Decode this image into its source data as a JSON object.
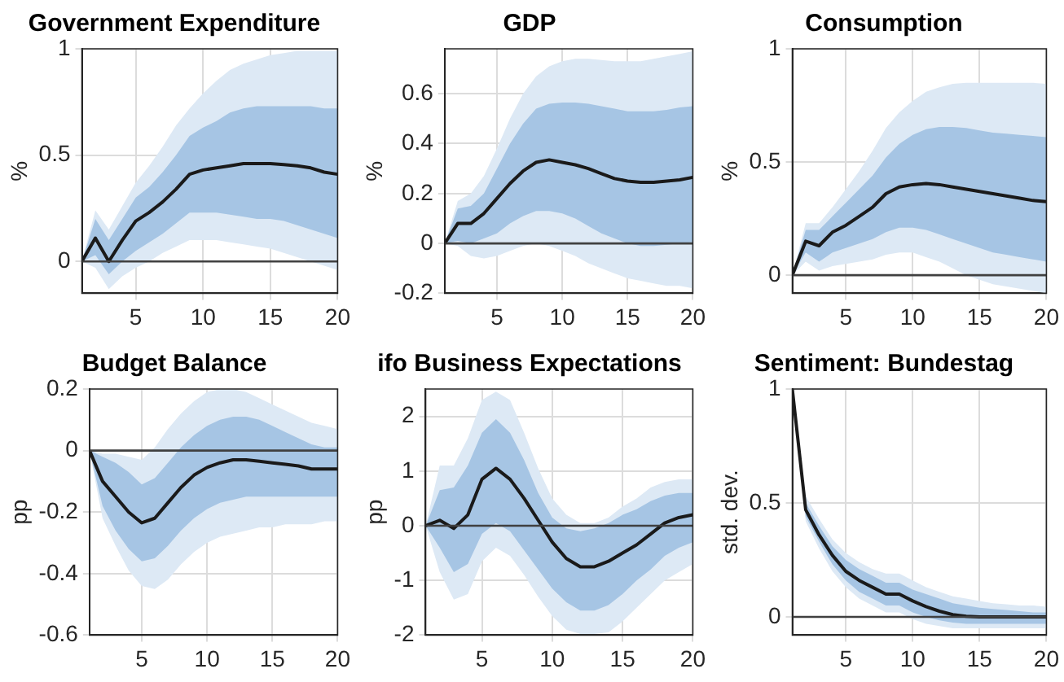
{
  "chart_data": [
    {
      "type": "line",
      "title": "Government Expenditure",
      "ylabel": "%",
      "x": [
        1,
        2,
        3,
        4,
        5,
        6,
        7,
        8,
        9,
        10,
        11,
        12,
        13,
        14,
        15,
        16,
        17,
        18,
        19,
        20
      ],
      "xlim": [
        1,
        20
      ],
      "xticks": [
        5,
        10,
        15,
        20
      ],
      "ylim": [
        -0.15,
        1
      ],
      "yticks": [
        0,
        0.5,
        1
      ],
      "grid": true,
      "ref_lines": [
        {
          "axis": "y",
          "value": 0,
          "color": "#404040"
        }
      ],
      "series": [
        {
          "color": "#1a1a1a",
          "values": [
            0,
            0.11,
            0,
            0.1,
            0.19,
            0.23,
            0.28,
            0.34,
            0.41,
            0.43,
            0.44,
            0.45,
            0.46,
            0.46,
            0.46,
            0.455,
            0.45,
            0.44,
            0.42,
            0.41
          ],
          "lower": [
            0,
            0.03,
            -0.06,
            0,
            0.05,
            0.09,
            0.13,
            0.18,
            0.23,
            0.23,
            0.23,
            0.22,
            0.21,
            0.2,
            0.2,
            0.19,
            0.17,
            0.15,
            0.13,
            0.11
          ],
          "upper": [
            0,
            0.2,
            0.1,
            0.2,
            0.3,
            0.35,
            0.42,
            0.5,
            0.59,
            0.63,
            0.66,
            0.7,
            0.72,
            0.73,
            0.73,
            0.73,
            0.73,
            0.73,
            0.72,
            0.72
          ]
        },
        {
          "color": "#dde9f5",
          "values": [
            null,
            null,
            null,
            null,
            null,
            null,
            null,
            null,
            null,
            null,
            null,
            null,
            null,
            null,
            null,
            null,
            null,
            null,
            null,
            null
          ],
          "lower": [
            0,
            -0.03,
            -0.13,
            -0.07,
            -0.03,
            0,
            0.04,
            0.07,
            0.1,
            0.1,
            0.1,
            0.09,
            0.08,
            0.07,
            0.06,
            0.04,
            0.02,
            0,
            -0.02,
            -0.04
          ],
          "upper": [
            0,
            0.24,
            0.15,
            0.26,
            0.37,
            0.45,
            0.54,
            0.64,
            0.72,
            0.79,
            0.85,
            0.9,
            0.93,
            0.95,
            0.97,
            0.98,
            0.99,
            0.99,
            0.99,
            0.99
          ]
        }
      ]
    },
    {
      "type": "line",
      "title": "GDP",
      "ylabel": "%",
      "x": [
        1,
        2,
        3,
        4,
        5,
        6,
        7,
        8,
        9,
        10,
        11,
        12,
        13,
        14,
        15,
        16,
        17,
        18,
        19,
        20
      ],
      "xlim": [
        1,
        20
      ],
      "xticks": [
        5,
        10,
        15,
        20
      ],
      "ylim": [
        -0.2,
        0.78
      ],
      "yticks": [
        -0.2,
        0,
        0.2,
        0.4,
        0.6
      ],
      "grid": true,
      "ref_lines": [
        {
          "axis": "y",
          "value": 0,
          "color": "#404040"
        }
      ],
      "series": [
        {
          "color": "#1a1a1a",
          "values": [
            0,
            0.08,
            0.08,
            0.12,
            0.18,
            0.24,
            0.29,
            0.325,
            0.335,
            0.325,
            0.315,
            0.3,
            0.28,
            0.26,
            0.25,
            0.245,
            0.245,
            0.25,
            0.255,
            0.265
          ],
          "lower": [
            0,
            0.01,
            0,
            0.02,
            0.04,
            0.08,
            0.11,
            0.13,
            0.13,
            0.12,
            0.1,
            0.07,
            0.04,
            0.02,
            0,
            -0.01,
            -0.01,
            -0.005,
            0,
            0.005
          ],
          "upper": [
            0,
            0.14,
            0.15,
            0.2,
            0.3,
            0.4,
            0.48,
            0.54,
            0.56,
            0.565,
            0.565,
            0.56,
            0.55,
            0.54,
            0.53,
            0.53,
            0.53,
            0.535,
            0.545,
            0.55
          ]
        },
        {
          "color": "#dde9f5",
          "values": [
            null,
            null,
            null,
            null,
            null,
            null,
            null,
            null,
            null,
            null,
            null,
            null,
            null,
            null,
            null,
            null,
            null,
            null,
            null,
            null
          ],
          "lower": [
            0,
            -0.01,
            -0.05,
            -0.06,
            -0.05,
            -0.03,
            -0.01,
            0,
            -0.01,
            -0.03,
            -0.05,
            -0.08,
            -0.1,
            -0.12,
            -0.14,
            -0.15,
            -0.16,
            -0.17,
            -0.17,
            -0.18
          ],
          "upper": [
            0,
            0.17,
            0.2,
            0.27,
            0.38,
            0.5,
            0.6,
            0.67,
            0.71,
            0.73,
            0.74,
            0.74,
            0.735,
            0.73,
            0.73,
            0.73,
            0.74,
            0.75,
            0.76,
            0.77
          ]
        }
      ]
    },
    {
      "type": "line",
      "title": "Consumption",
      "ylabel": "%",
      "x": [
        1,
        2,
        3,
        4,
        5,
        6,
        7,
        8,
        9,
        10,
        11,
        12,
        13,
        14,
        15,
        16,
        17,
        18,
        19,
        20
      ],
      "xlim": [
        1,
        20
      ],
      "xticks": [
        5,
        10,
        15,
        20
      ],
      "ylim": [
        -0.08,
        1
      ],
      "yticks": [
        0,
        0.5,
        1
      ],
      "grid": true,
      "ref_lines": [
        {
          "axis": "y",
          "value": 0,
          "color": "#404040"
        }
      ],
      "series": [
        {
          "color": "#1a1a1a",
          "values": [
            0,
            0.15,
            0.13,
            0.19,
            0.22,
            0.26,
            0.3,
            0.36,
            0.39,
            0.4,
            0.405,
            0.4,
            0.39,
            0.38,
            0.37,
            0.36,
            0.35,
            0.34,
            0.33,
            0.325
          ],
          "lower": [
            0,
            0.1,
            0.06,
            0.1,
            0.12,
            0.14,
            0.16,
            0.19,
            0.21,
            0.21,
            0.2,
            0.18,
            0.16,
            0.14,
            0.12,
            0.1,
            0.09,
            0.08,
            0.07,
            0.06
          ],
          "upper": [
            0,
            0.2,
            0.2,
            0.26,
            0.32,
            0.38,
            0.44,
            0.52,
            0.58,
            0.62,
            0.645,
            0.655,
            0.655,
            0.65,
            0.64,
            0.63,
            0.625,
            0.62,
            0.615,
            0.61
          ]
        },
        {
          "color": "#dde9f5",
          "values": [
            null,
            null,
            null,
            null,
            null,
            null,
            null,
            null,
            null,
            null,
            null,
            null,
            null,
            null,
            null,
            null,
            null,
            null,
            null,
            null
          ],
          "lower": [
            0,
            0.06,
            0.02,
            0.04,
            0.05,
            0.06,
            0.07,
            0.09,
            0.1,
            0.1,
            0.08,
            0.06,
            0.03,
            0,
            -0.02,
            -0.04,
            -0.05,
            -0.06,
            -0.07,
            -0.08
          ],
          "upper": [
            0,
            0.23,
            0.23,
            0.3,
            0.38,
            0.46,
            0.55,
            0.65,
            0.72,
            0.77,
            0.81,
            0.83,
            0.845,
            0.85,
            0.85,
            0.85,
            0.85,
            0.85,
            0.85,
            0.845
          ]
        }
      ]
    },
    {
      "type": "line",
      "title": "Budget Balance",
      "ylabel": "pp",
      "x": [
        1,
        2,
        3,
        4,
        5,
        6,
        7,
        8,
        9,
        10,
        11,
        12,
        13,
        14,
        15,
        16,
        17,
        18,
        19,
        20
      ],
      "xlim": [
        1,
        20
      ],
      "xticks": [
        5,
        10,
        15,
        20
      ],
      "ylim": [
        -0.6,
        0.2
      ],
      "yticks": [
        -0.6,
        -0.4,
        -0.2,
        0,
        0.2
      ],
      "grid": true,
      "ref_lines": [
        {
          "axis": "y",
          "value": 0,
          "color": "#404040"
        }
      ],
      "series": [
        {
          "color": "#1a1a1a",
          "values": [
            0,
            -0.1,
            -0.15,
            -0.2,
            -0.235,
            -0.22,
            -0.17,
            -0.12,
            -0.08,
            -0.055,
            -0.04,
            -0.03,
            -0.03,
            -0.035,
            -0.04,
            -0.045,
            -0.05,
            -0.06,
            -0.06,
            -0.06
          ],
          "lower": [
            0,
            -0.18,
            -0.26,
            -0.32,
            -0.36,
            -0.35,
            -0.31,
            -0.26,
            -0.22,
            -0.19,
            -0.17,
            -0.16,
            -0.15,
            -0.15,
            -0.15,
            -0.15,
            -0.15,
            -0.15,
            -0.15,
            -0.15
          ],
          "upper": [
            0,
            -0.02,
            -0.04,
            -0.07,
            -0.11,
            -0.09,
            -0.04,
            0.01,
            0.05,
            0.08,
            0.1,
            0.11,
            0.11,
            0.1,
            0.08,
            0.06,
            0.04,
            0.02,
            0.01,
            0.01
          ]
        },
        {
          "color": "#dde9f5",
          "values": [
            null,
            null,
            null,
            null,
            null,
            null,
            null,
            null,
            null,
            null,
            null,
            null,
            null,
            null,
            null,
            null,
            null,
            null,
            null,
            null
          ],
          "lower": [
            0,
            -0.22,
            -0.31,
            -0.39,
            -0.44,
            -0.45,
            -0.42,
            -0.37,
            -0.33,
            -0.3,
            -0.28,
            -0.27,
            -0.26,
            -0.25,
            -0.25,
            -0.24,
            -0.24,
            -0.24,
            -0.23,
            -0.23
          ],
          "upper": [
            0,
            -0.01,
            -0.01,
            -0.02,
            -0.03,
            0.01,
            0.07,
            0.12,
            0.16,
            0.19,
            0.2,
            0.2,
            0.19,
            0.17,
            0.15,
            0.13,
            0.11,
            0.09,
            0.08,
            0.07
          ]
        }
      ]
    },
    {
      "type": "line",
      "title": "ifo Business Expectations",
      "ylabel": "pp",
      "x": [
        1,
        2,
        3,
        4,
        5,
        6,
        7,
        8,
        9,
        10,
        11,
        12,
        13,
        14,
        15,
        16,
        17,
        18,
        19,
        20
      ],
      "xlim": [
        1,
        20
      ],
      "xticks": [
        5,
        10,
        15,
        20
      ],
      "ylim": [
        -2,
        2.5
      ],
      "yticks": [
        -2,
        -1,
        0,
        1,
        2
      ],
      "grid": true,
      "ref_lines": [
        {
          "axis": "y",
          "value": 0,
          "color": "#404040"
        }
      ],
      "series": [
        {
          "color": "#1a1a1a",
          "values": [
            0,
            0.1,
            -0.05,
            0.2,
            0.85,
            1.05,
            0.85,
            0.5,
            0.1,
            -0.3,
            -0.6,
            -0.75,
            -0.75,
            -0.65,
            -0.5,
            -0.35,
            -0.15,
            0.05,
            0.15,
            0.2
          ],
          "lower": [
            0,
            -0.4,
            -0.85,
            -0.7,
            -0.15,
            0.05,
            -0.1,
            -0.45,
            -0.8,
            -1.15,
            -1.4,
            -1.55,
            -1.55,
            -1.45,
            -1.25,
            -1,
            -0.8,
            -0.55,
            -0.4,
            -0.3
          ],
          "upper": [
            0,
            0.65,
            0.7,
            1.1,
            1.7,
            1.95,
            1.7,
            1.2,
            0.6,
            0.15,
            -0.05,
            -0.1,
            -0.05,
            0.05,
            0.2,
            0.3,
            0.45,
            0.55,
            0.6,
            0.6
          ]
        },
        {
          "color": "#dde9f5",
          "values": [
            null,
            null,
            null,
            null,
            null,
            null,
            null,
            null,
            null,
            null,
            null,
            null,
            null,
            null,
            null,
            null,
            null,
            null,
            null,
            null
          ],
          "lower": [
            0,
            -0.85,
            -1.35,
            -1.25,
            -0.65,
            -0.4,
            -0.55,
            -0.9,
            -1.3,
            -1.65,
            -1.9,
            -1.98,
            -1.98,
            -1.95,
            -1.75,
            -1.5,
            -1.25,
            -1,
            -0.85,
            -0.7
          ],
          "upper": [
            0,
            1.1,
            1.1,
            1.6,
            2.3,
            2.45,
            2.3,
            1.7,
            1.05,
            0.5,
            0.2,
            0.05,
            0.05,
            0.15,
            0.35,
            0.5,
            0.7,
            0.8,
            0.85,
            0.85
          ]
        }
      ]
    },
    {
      "type": "line",
      "title": "Sentiment: Bundestag",
      "ylabel": "std. dev.",
      "x": [
        1,
        2,
        3,
        4,
        5,
        6,
        7,
        8,
        9,
        10,
        11,
        12,
        13,
        14,
        15,
        16,
        17,
        18,
        19,
        20
      ],
      "xlim": [
        1,
        20
      ],
      "xticks": [
        5,
        10,
        15,
        20
      ],
      "ylim": [
        -0.08,
        1
      ],
      "yticks": [
        0,
        0.5,
        1
      ],
      "grid": true,
      "ref_lines": [
        {
          "axis": "y",
          "value": 0,
          "color": "#404040"
        }
      ],
      "series": [
        {
          "color": "#1a1a1a",
          "values": [
            1,
            0.47,
            0.36,
            0.27,
            0.2,
            0.16,
            0.13,
            0.1,
            0.1,
            0.07,
            0.045,
            0.025,
            0.01,
            0.003,
            0,
            0,
            0,
            0,
            0,
            0
          ],
          "lower": [
            1,
            0.44,
            0.33,
            0.23,
            0.16,
            0.11,
            0.08,
            0.05,
            0.05,
            0.02,
            0,
            -0.015,
            -0.025,
            -0.03,
            -0.03,
            -0.03,
            -0.03,
            -0.03,
            -0.03,
            -0.03
          ],
          "upper": [
            1,
            0.5,
            0.4,
            0.31,
            0.25,
            0.21,
            0.18,
            0.15,
            0.15,
            0.12,
            0.1,
            0.08,
            0.06,
            0.05,
            0.04,
            0.035,
            0.03,
            0.025,
            0.02,
            0.02
          ]
        },
        {
          "color": "#dde9f5",
          "values": [
            null,
            null,
            null,
            null,
            null,
            null,
            null,
            null,
            null,
            null,
            null,
            null,
            null,
            null,
            null,
            null,
            null,
            null,
            null,
            null
          ],
          "lower": [
            1,
            0.42,
            0.3,
            0.2,
            0.13,
            0.08,
            0.05,
            0.02,
            0.02,
            -0.01,
            -0.03,
            -0.04,
            -0.05,
            -0.05,
            -0.05,
            -0.05,
            -0.05,
            -0.05,
            -0.05,
            -0.05
          ],
          "upper": [
            1,
            0.53,
            0.43,
            0.34,
            0.28,
            0.24,
            0.21,
            0.19,
            0.19,
            0.16,
            0.13,
            0.11,
            0.09,
            0.08,
            0.07,
            0.06,
            0.055,
            0.05,
            0.05,
            0.045
          ]
        }
      ]
    }
  ]
}
